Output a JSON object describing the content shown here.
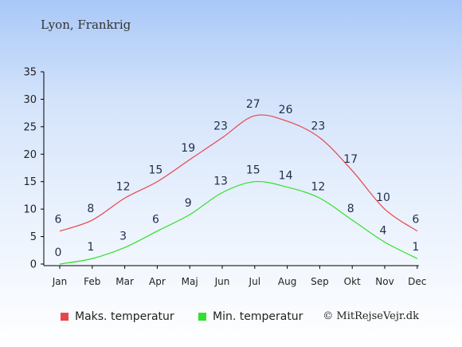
{
  "header": {
    "title": "Lyon, Frankrig"
  },
  "chart_data": {
    "type": "line",
    "categories": [
      "Jan",
      "Feb",
      "Mar",
      "Apr",
      "Maj",
      "Jun",
      "Jul",
      "Aug",
      "Sep",
      "Okt",
      "Nov",
      "Dec"
    ],
    "series": [
      {
        "name": "Maks. temperatur",
        "color": "#e8474a",
        "values": [
          6,
          8,
          12,
          15,
          19,
          23,
          27,
          26,
          23,
          17,
          10,
          6
        ]
      },
      {
        "name": "Min. temperatur",
        "color": "#33e02d",
        "values": [
          0,
          1,
          3,
          6,
          9,
          13,
          15,
          14,
          12,
          8,
          4,
          1
        ]
      }
    ],
    "yticks": [
      0,
      5,
      10,
      15,
      20,
      25,
      30,
      35
    ],
    "ylim": [
      0,
      35
    ],
    "grid": false,
    "legend_position": "bottom-left"
  },
  "footer": {
    "copyright": "© MitRejseVejr.dk"
  }
}
